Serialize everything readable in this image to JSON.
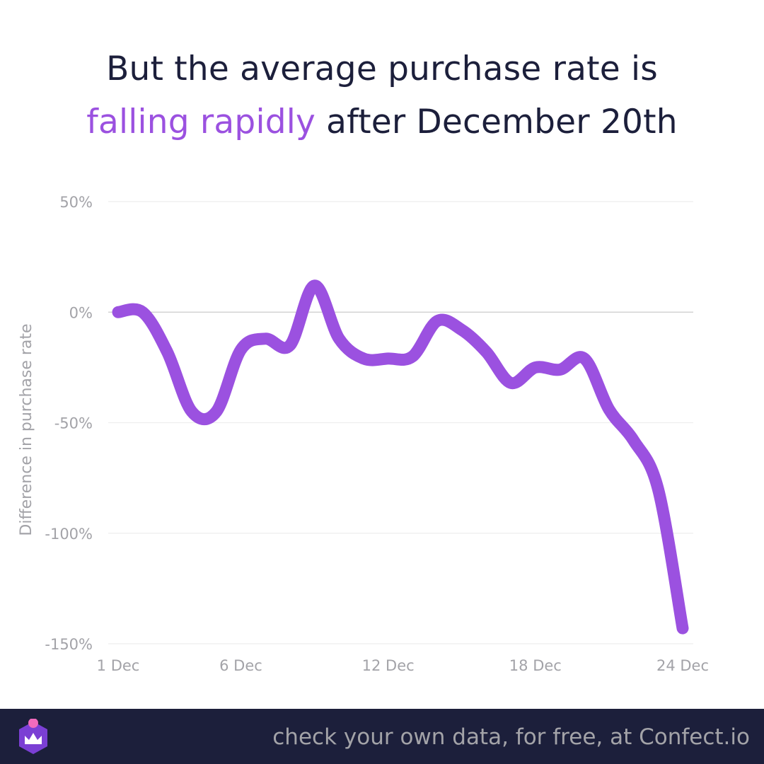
{
  "headline": {
    "line1": "But the average purchase rate is",
    "line2_accent": "falling rapidly",
    "line2_rest": " after December 20th"
  },
  "colors": {
    "accent": "#9b51e0",
    "title": "#1c1f3b",
    "axis_text": "#a3a3a8",
    "gridline": "#eeeeee",
    "zero_line": "#cccccc",
    "footer_bg": "#1c1f3b"
  },
  "footer": {
    "logo_icon": "confect-crown-logo-icon",
    "tagline": "check your own data, for free, at Confect.io"
  },
  "chart_data": {
    "type": "line",
    "title": "But the average purchase rate is falling rapidly after December 20th",
    "xlabel": "",
    "ylabel": "Difference in purchase rate",
    "x_ticks": [
      "1 Dec",
      "6 Dec",
      "12 Dec",
      "18 Dec",
      "24 Dec"
    ],
    "x_tick_days": [
      1,
      6,
      12,
      18,
      24
    ],
    "y_ticks": [
      "50%",
      "0%",
      "-50%",
      "-100%",
      "-150%"
    ],
    "y_tick_values": [
      50,
      0,
      -50,
      -100,
      -150
    ],
    "ylim": [
      -150,
      50
    ],
    "xlim": [
      1,
      24
    ],
    "grid": true,
    "legend": "none",
    "series": [
      {
        "color": "#9b51e0",
        "x": [
          1,
          2,
          3,
          4,
          5,
          6,
          7,
          8,
          9,
          10,
          11,
          12,
          13,
          14,
          15,
          16,
          17,
          18,
          19,
          20,
          21,
          22,
          23,
          24
        ],
        "values": [
          0,
          0,
          -18,
          -45,
          -45,
          -17,
          -12,
          -15,
          12,
          -12,
          -21,
          -21,
          -20,
          -4,
          -8,
          -18,
          -32,
          -25,
          -26,
          -21,
          -44,
          -58,
          -80,
          -143
        ]
      }
    ]
  }
}
